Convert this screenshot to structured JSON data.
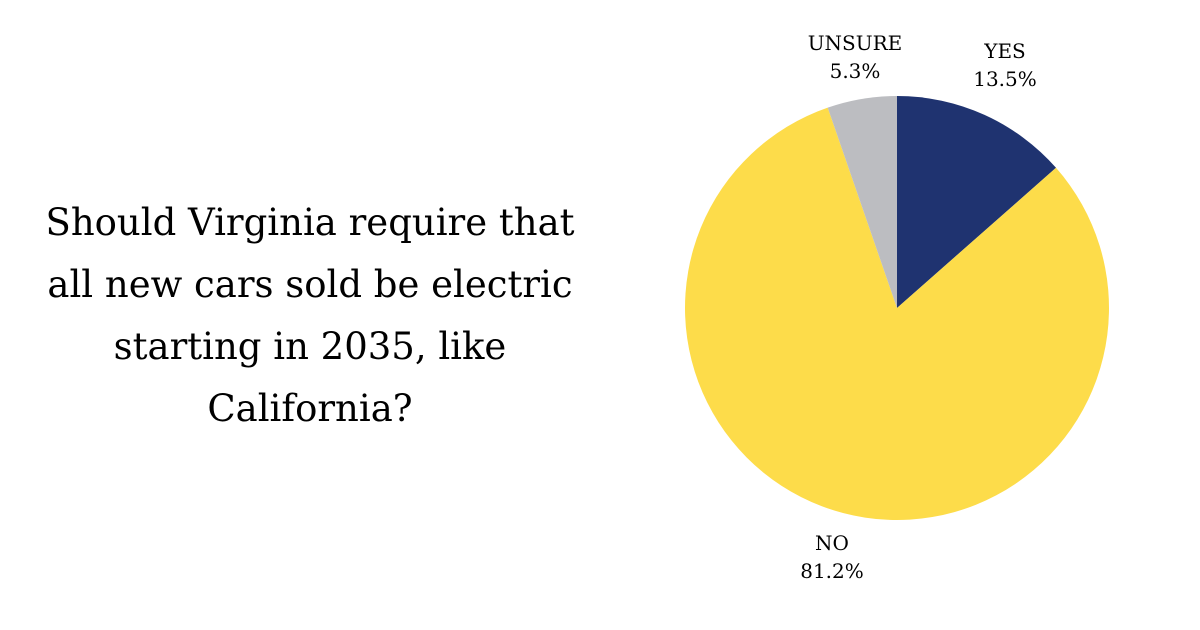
{
  "question": "Should Virginia require that all new cars sold be electric starting in 2035, like California?",
  "chart_data": {
    "type": "pie",
    "title": "Should Virginia require that all new cars sold be electric starting in 2035, like California?",
    "slices": [
      {
        "label": "YES",
        "value": 13.5,
        "value_text": "13.5%",
        "color": "#1f3370"
      },
      {
        "label": "NO",
        "value": 81.2,
        "value_text": "81.2%",
        "color": "#fddc4a"
      },
      {
        "label": "UNSURE",
        "value": 5.3,
        "value_text": "5.3%",
        "color": "#bcbdc1"
      }
    ],
    "start_angle": "12 o'clock",
    "direction": "clockwise",
    "legend": "none"
  }
}
